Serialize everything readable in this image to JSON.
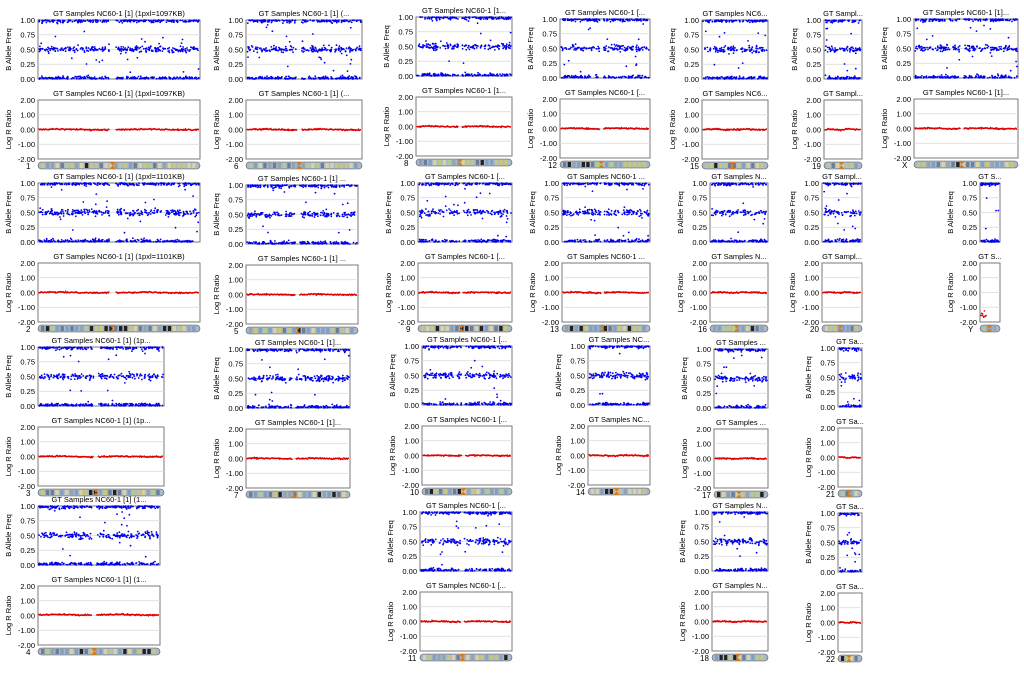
{
  "chart_data": {
    "type": "scatter",
    "panel_title": "GT Samples NC60-1 [1]",
    "panel_title_suffixes": {
      "1": "(1pxl=1097KB)",
      "2": "(1pxl=1101KB)"
    },
    "baf_ylabel": "B Allele Freq",
    "lrr_ylabel": "Log R Ratio",
    "baf_ticks": [
      "0.00",
      "0.25",
      "0.50",
      "0.75",
      "1.00"
    ],
    "lrr_ticks": [
      "-2.00",
      "-1.00",
      "0.00",
      "1.00",
      "2.00"
    ],
    "baf_ylim": [
      0,
      1
    ],
    "lrr_ylim": [
      -2,
      2
    ],
    "grid": true,
    "colors": {
      "baf_points": "#0000ee",
      "lrr_points": "#dd0000",
      "frame": "#7a7a7a",
      "grid": "#d8d8d8"
    },
    "chromosomes": [
      {
        "label": "1",
        "baf_bands": [
          0.5,
          0.0,
          1.0
        ],
        "lrr_level": 0.0
      },
      {
        "label": "2",
        "baf_bands": [
          0.5,
          0.0,
          1.0
        ],
        "lrr_level": 0.0
      },
      {
        "label": "3",
        "baf_bands": [
          0.5,
          0.0,
          1.0
        ],
        "lrr_level": 0.0
      },
      {
        "label": "4",
        "baf_bands": [
          0.5,
          0.0,
          1.0
        ],
        "lrr_level": 0.05
      },
      {
        "label": "5",
        "baf_bands": [
          0.5,
          0.0,
          1.0
        ],
        "lrr_level": 0.0
      },
      {
        "label": "6",
        "baf_bands": [
          0.5,
          0.0,
          1.0
        ],
        "lrr_level": 0.0
      },
      {
        "label": "7",
        "baf_bands": [
          0.5,
          0.0,
          1.0
        ],
        "lrr_level": 0.0
      },
      {
        "label": "8",
        "baf_bands": [
          0.5,
          0.0,
          1.0
        ],
        "lrr_level": 0.0
      },
      {
        "label": "9",
        "baf_bands": [
          0.5,
          0.0,
          1.0
        ],
        "lrr_level": 0.0
      },
      {
        "label": "10",
        "baf_bands": [
          0.5,
          0.0,
          1.0
        ],
        "lrr_level": 0.0
      },
      {
        "label": "11",
        "baf_bands": [
          0.5,
          0.0,
          1.0
        ],
        "lrr_level": 0.0
      },
      {
        "label": "12",
        "baf_bands": [
          0.5,
          0.0,
          1.0
        ],
        "lrr_level": 0.0
      },
      {
        "label": "13",
        "baf_bands": [
          0.5,
          0.0,
          1.0
        ],
        "lrr_level": 0.0
      },
      {
        "label": "14",
        "baf_bands": [
          0.5,
          0.0,
          1.0
        ],
        "lrr_level": 0.0
      },
      {
        "label": "15",
        "baf_bands": [
          0.5,
          0.0,
          1.0
        ],
        "lrr_level": 0.0
      },
      {
        "label": "16",
        "baf_bands": [
          0.5,
          0.0,
          1.0
        ],
        "lrr_level": 0.0
      },
      {
        "label": "17",
        "baf_bands": [
          0.5,
          0.0,
          1.0
        ],
        "lrr_level": 0.0
      },
      {
        "label": "18",
        "baf_bands": [
          0.5,
          0.0,
          1.0
        ],
        "lrr_level": 0.0
      },
      {
        "label": "19",
        "baf_bands": [
          0.5,
          0.0,
          1.0
        ],
        "lrr_level": 0.0
      },
      {
        "label": "20",
        "baf_bands": [
          0.5,
          0.0,
          1.0
        ],
        "lrr_level": 0.0
      },
      {
        "label": "21",
        "baf_bands": [
          0.5,
          0.0,
          1.0
        ],
        "lrr_level": 0.0
      },
      {
        "label": "22",
        "baf_bands": [
          0.5,
          0.0,
          1.0
        ],
        "lrr_level": 0.0
      },
      {
        "label": "X",
        "baf_bands": [
          0.5,
          0.0,
          1.0
        ],
        "lrr_level": 0.0
      },
      {
        "label": "Y",
        "baf_bands": [
          0.0,
          1.0
        ],
        "lrr_level": -1.5
      }
    ]
  }
}
